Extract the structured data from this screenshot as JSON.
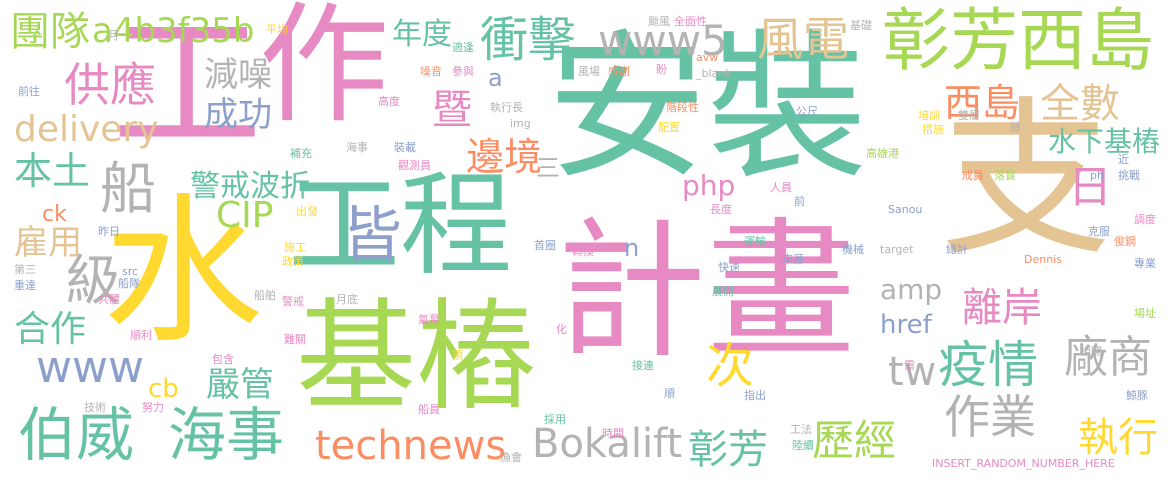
{
  "colors": {
    "green": "#66c2a5",
    "orange": "#fc8d62",
    "blue": "#8da0cb",
    "pink": "#e78ac3",
    "lime": "#a6d854",
    "yellow": "#ffd92f",
    "tan": "#e5c494",
    "gray": "#b3b3b3"
  },
  "words": [
    {
      "text": "安裝",
      "color": "green"
    },
    {
      "text": "計畫",
      "color": "pink"
    },
    {
      "text": "水",
      "color": "yellow"
    },
    {
      "text": "工",
      "color": "pink"
    },
    {
      "text": "作",
      "color": "pink"
    },
    {
      "text": "支",
      "color": "tan"
    },
    {
      "text": "基樁",
      "color": "lime"
    },
    {
      "text": "工程",
      "color": "green"
    },
    {
      "text": "彰芳西島",
      "color": "lime"
    },
    {
      "text": "海事",
      "color": "green"
    },
    {
      "text": "伯威",
      "color": "green"
    },
    {
      "text": "technews",
      "color": "orange"
    },
    {
      "text": "Bokalift",
      "color": "gray"
    },
    {
      "text": "供應",
      "color": "pink"
    },
    {
      "text": "衝擊",
      "color": "green"
    },
    {
      "text": "www5",
      "color": "gray"
    },
    {
      "text": "風電",
      "color": "tan"
    },
    {
      "text": "團隊",
      "color": "lime"
    },
    {
      "text": "a4b3f35b",
      "color": "lime"
    },
    {
      "text": "年度",
      "color": "green"
    },
    {
      "text": "delivery",
      "color": "tan"
    },
    {
      "text": "減噪",
      "color": "gray"
    },
    {
      "text": "成功",
      "color": "blue"
    },
    {
      "text": "暨",
      "color": "pink"
    },
    {
      "text": "西島",
      "color": "orange"
    },
    {
      "text": "全數",
      "color": "tan"
    },
    {
      "text": "水下基樁",
      "color": "green"
    },
    {
      "text": "邊境",
      "color": "orange"
    },
    {
      "text": "本土",
      "color": "green"
    },
    {
      "text": "船",
      "color": "gray"
    },
    {
      "text": "警戒波折",
      "color": "green"
    },
    {
      "text": "日",
      "color": "pink"
    },
    {
      "text": "皆",
      "color": "blue"
    },
    {
      "text": "php",
      "color": "pink"
    },
    {
      "text": "CIP",
      "color": "lime"
    },
    {
      "text": "雇用",
      "color": "tan"
    },
    {
      "text": "級",
      "color": "gray"
    },
    {
      "text": "合作",
      "color": "green"
    },
    {
      "text": "www",
      "color": "blue"
    },
    {
      "text": "離岸",
      "color": "pink"
    },
    {
      "text": "廠商",
      "color": "gray"
    },
    {
      "text": "疫情",
      "color": "green"
    },
    {
      "text": "amp",
      "color": "gray"
    },
    {
      "text": "href",
      "color": "blue"
    },
    {
      "text": "tw",
      "color": "gray"
    },
    {
      "text": "嚴管",
      "color": "green"
    },
    {
      "text": "次",
      "color": "yellow"
    },
    {
      "text": "作業",
      "color": "gray"
    },
    {
      "text": "歷經",
      "color": "lime"
    },
    {
      "text": "執行",
      "color": "yellow"
    },
    {
      "text": "彰芳",
      "color": "green"
    },
    {
      "text": "cb",
      "color": "yellow"
    },
    {
      "text": "ck",
      "color": "orange"
    },
    {
      "text": "a",
      "color": "blue"
    },
    {
      "text": "n",
      "color": "blue"
    },
    {
      "text": "三",
      "color": "gray"
    },
    {
      "text": "月",
      "color": "gray"
    },
    {
      "text": "平均",
      "color": "yellow"
    },
    {
      "text": "前往",
      "color": "blue"
    },
    {
      "text": "適逢",
      "color": "green"
    },
    {
      "text": "噪音",
      "color": "orange"
    },
    {
      "text": "參與",
      "color": "pink"
    },
    {
      "text": "颱風",
      "color": "gray"
    },
    {
      "text": "全面性",
      "color": "pink"
    },
    {
      "text": "基礎",
      "color": "gray"
    },
    {
      "text": "avw",
      "color": "orange"
    },
    {
      "text": "_blank",
      "color": "gray"
    },
    {
      "text": "盼",
      "color": "pink"
    },
    {
      "text": "感謝",
      "color": "orange"
    },
    {
      "text": "風場",
      "color": "gray"
    },
    {
      "text": "執行長",
      "color": "gray"
    },
    {
      "text": "階段性",
      "color": "orange"
    },
    {
      "text": "高度",
      "color": "pink"
    },
    {
      "text": "img",
      "color": "gray"
    },
    {
      "text": "配置",
      "color": "yellow"
    },
    {
      "text": "公尺",
      "color": "blue"
    },
    {
      "text": "培訓",
      "color": "yellow"
    },
    {
      "text": "雙層",
      "color": "gray"
    },
    {
      "text": "措施",
      "color": "yellow"
    },
    {
      "text": "鏈",
      "color": "gray"
    },
    {
      "text": "海事",
      "color": "gray"
    },
    {
      "text": "裝載",
      "color": "blue"
    },
    {
      "text": "觀測員",
      "color": "pink"
    },
    {
      "text": "補充",
      "color": "green"
    },
    {
      "text": "高雄港",
      "color": "lime"
    },
    {
      "text": "近",
      "color": "blue"
    },
    {
      "text": "挑戰",
      "color": "blue"
    },
    {
      "text": "ph",
      "color": "blue"
    },
    {
      "text": "成員",
      "color": "orange"
    },
    {
      "text": "落實",
      "color": "lime"
    },
    {
      "text": "人員",
      "color": "pink"
    },
    {
      "text": "長度",
      "color": "pink"
    },
    {
      "text": "前",
      "color": "blue"
    },
    {
      "text": "Sanou",
      "color": "blue"
    },
    {
      "text": "調度",
      "color": "pink"
    },
    {
      "text": "克服",
      "color": "blue"
    },
    {
      "text": "俊鋼",
      "color": "orange"
    },
    {
      "text": "出發",
      "color": "yellow"
    },
    {
      "text": "昨日",
      "color": "blue"
    },
    {
      "text": "首圈",
      "color": "blue"
    },
    {
      "text": "轉換",
      "color": "pink"
    },
    {
      "text": "運輸",
      "color": "green"
    },
    {
      "text": "機械",
      "color": "blue"
    },
    {
      "text": "target",
      "color": "gray"
    },
    {
      "text": "總計",
      "color": "blue"
    },
    {
      "text": "施工",
      "color": "yellow"
    },
    {
      "text": "政策",
      "color": "yellow"
    },
    {
      "text": "src",
      "color": "blue"
    },
    {
      "text": "船隊",
      "color": "blue"
    },
    {
      "text": "快速",
      "color": "blue"
    },
    {
      "text": "來源",
      "color": "blue"
    },
    {
      "text": "Dennis",
      "color": "orange"
    },
    {
      "text": "專業",
      "color": "blue"
    },
    {
      "text": "第三",
      "color": "gray"
    },
    {
      "text": "重達",
      "color": "blue"
    },
    {
      "text": "共體",
      "color": "pink"
    },
    {
      "text": "船舶",
      "color": "gray"
    },
    {
      "text": "警戒",
      "color": "pink"
    },
    {
      "text": "月底",
      "color": "gray"
    },
    {
      "text": "展開",
      "color": "green"
    },
    {
      "text": "場址",
      "color": "lime"
    },
    {
      "text": "順利",
      "color": "pink"
    },
    {
      "text": "氣幕",
      "color": "pink"
    },
    {
      "text": "化",
      "color": "pink"
    },
    {
      "text": "難關",
      "color": "pink"
    },
    {
      "text": "包含",
      "color": "pink"
    },
    {
      "text": "須",
      "color": "yellow"
    },
    {
      "text": "接連",
      "color": "green"
    },
    {
      "text": "需",
      "color": "pink"
    },
    {
      "text": "相關",
      "color": "gray"
    },
    {
      "text": "技術",
      "color": "gray"
    },
    {
      "text": "努力",
      "color": "pink"
    },
    {
      "text": "順",
      "color": "blue"
    },
    {
      "text": "指出",
      "color": "blue"
    },
    {
      "text": "鯨豚",
      "color": "blue"
    },
    {
      "text": "船員",
      "color": "pink"
    },
    {
      "text": "採用",
      "color": "green"
    },
    {
      "text": "漁會",
      "color": "gray"
    },
    {
      "text": "時間",
      "color": "pink"
    },
    {
      "text": "工法",
      "color": "gray"
    },
    {
      "text": "陸續",
      "color": "green"
    },
    {
      "text": "INSERT_RANDOM_NUMBER_HERE",
      "color": "pink"
    }
  ]
}
